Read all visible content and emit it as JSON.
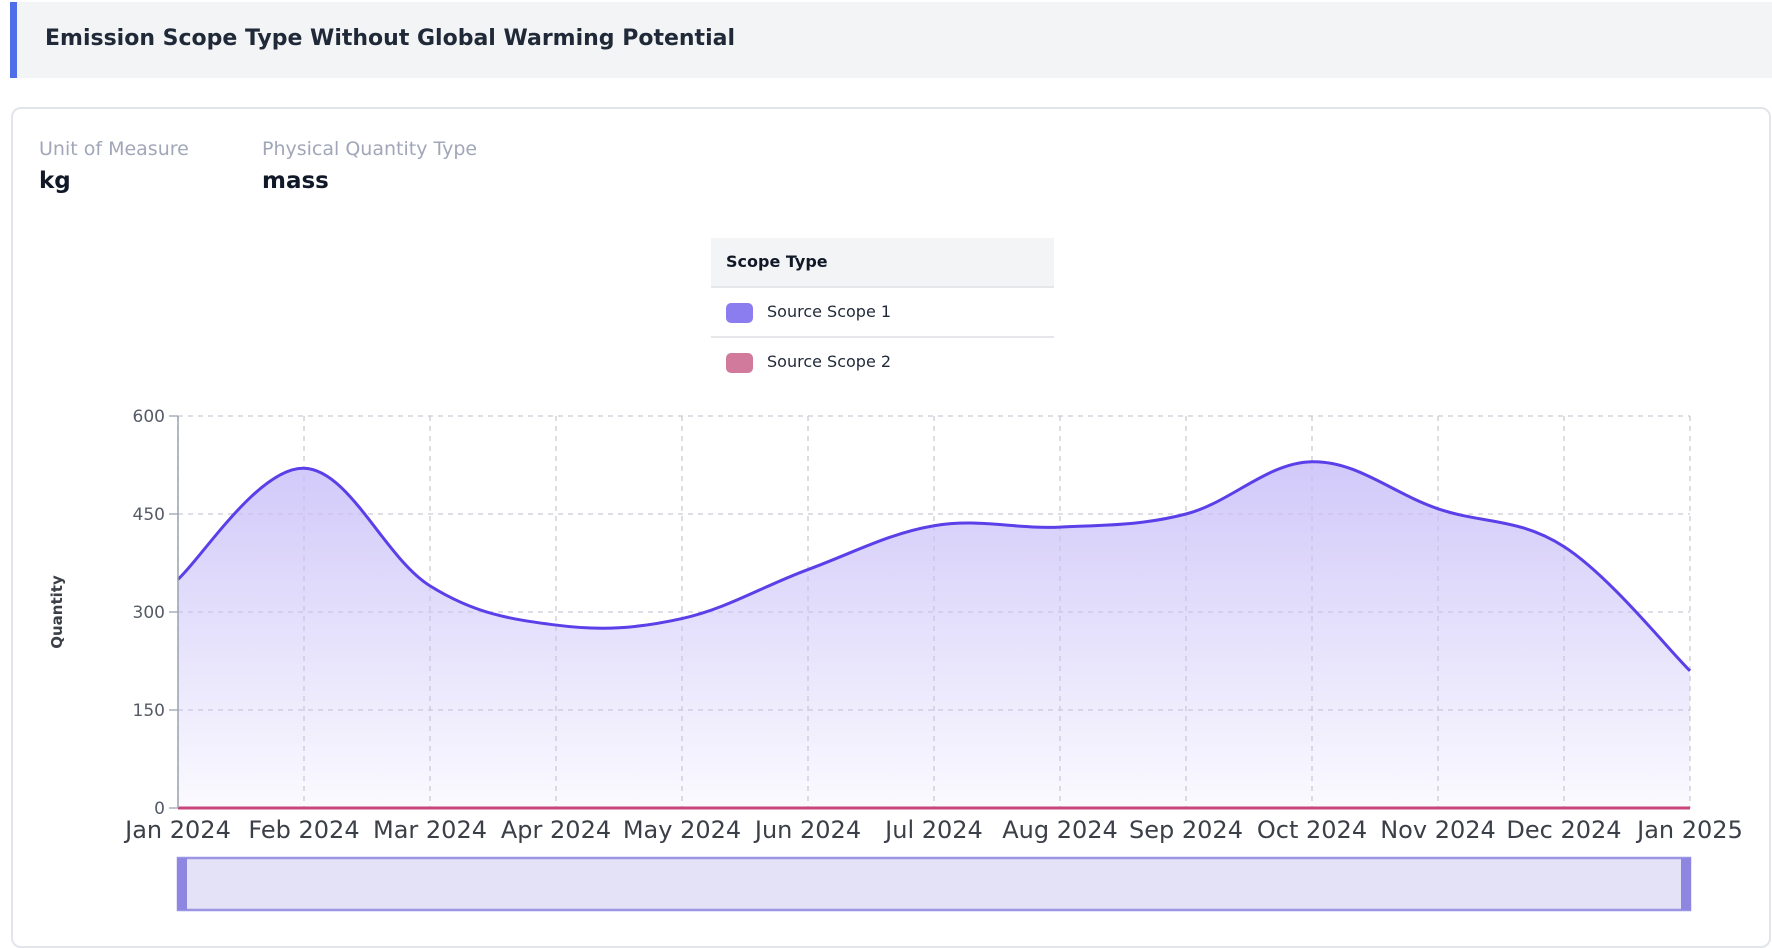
{
  "header": {
    "title": "Emission Scope Type Without Global Warming Potential"
  },
  "meta": {
    "unit_label": "Unit of Measure",
    "unit_value": "kg",
    "quantity_type_label": "Physical Quantity Type",
    "quantity_type_value": "mass"
  },
  "legend": {
    "title": "Scope Type",
    "items": [
      {
        "label": "Source Scope 1",
        "color": "#8b7cf0"
      },
      {
        "label": "Source Scope 2",
        "color": "#d17a9c"
      }
    ]
  },
  "chart_data": {
    "type": "area",
    "ylabel": "Quantity",
    "xlabel": "",
    "ylim": [
      0,
      600
    ],
    "yticks": [
      0,
      150,
      300,
      450,
      600
    ],
    "grid": true,
    "legend_position": "top-center",
    "categories": [
      "Jan 2024",
      "Feb 2024",
      "Mar 2024",
      "Apr 2024",
      "May 2024",
      "Jun 2024",
      "Jul 2024",
      "Aug 2024",
      "Sep 2024",
      "Oct 2024",
      "Nov 2024",
      "Dec 2024",
      "Jan 2025"
    ],
    "series": [
      {
        "name": "Source Scope 1",
        "color": "#5b3fe8",
        "values": [
          350,
          520,
          340,
          280,
          290,
          365,
          432,
          430,
          450,
          530,
          458,
          400,
          210
        ]
      },
      {
        "name": "Source Scope 2",
        "color": "#c8447a",
        "values": [
          0,
          0,
          0,
          0,
          0,
          0,
          0,
          0,
          0,
          0,
          0,
          0,
          0
        ]
      }
    ]
  }
}
